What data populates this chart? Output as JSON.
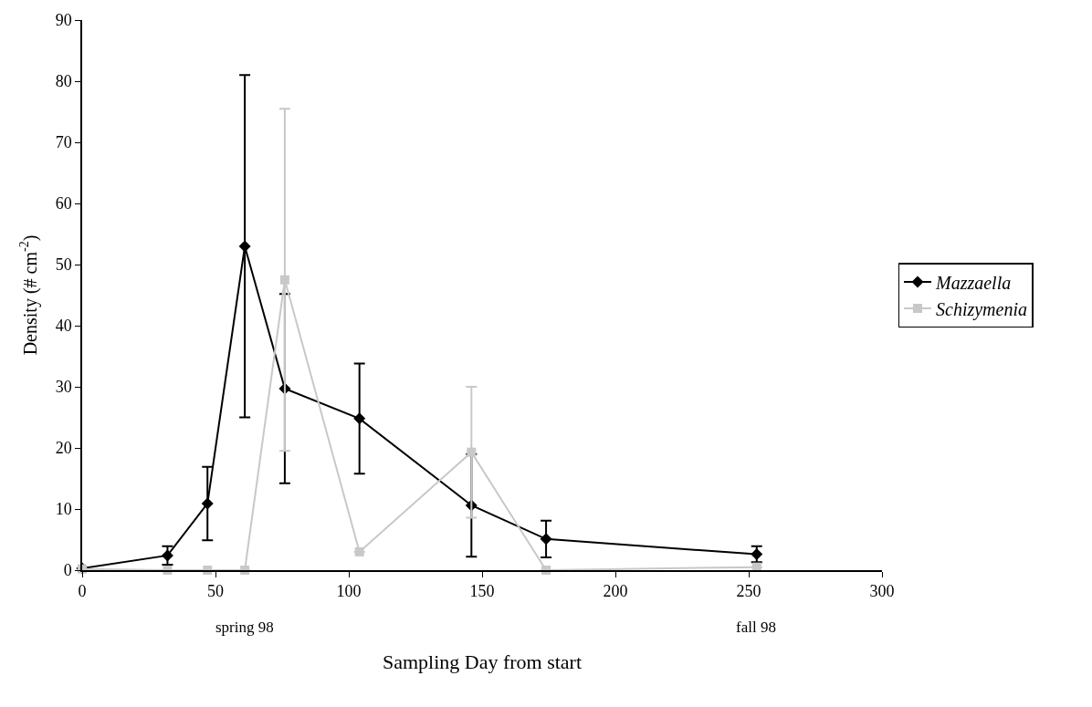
{
  "chart_data": {
    "type": "line",
    "xlabel": "Sampling Day from start",
    "ylabel": "Density (# cm$^{-2}$)",
    "x": [
      0,
      32,
      47,
      61,
      76,
      104,
      146,
      174,
      253
    ],
    "series": [
      {
        "name": "Mazzaella",
        "color": "#000000",
        "marker": "diamond",
        "values": [
          0.3,
          2.4,
          10.9,
          53,
          29.7,
          24.8,
          10.6,
          5.1,
          2.6
        ],
        "errors": [
          null,
          1.5,
          6,
          28,
          15.5,
          9,
          8.4,
          3,
          1.3
        ]
      },
      {
        "name": "Schizymenia",
        "color": "#c8c8c8",
        "marker": "square",
        "values": [
          0.2,
          0,
          0,
          0,
          47.5,
          3,
          19.3,
          0,
          0.5
        ],
        "errors": [
          null,
          null,
          null,
          null,
          28,
          null,
          10.7,
          null,
          null
        ]
      }
    ],
    "xlim": [
      0,
      300
    ],
    "xticks": [
      0,
      50,
      100,
      150,
      200,
      250,
      300
    ],
    "ylim": [
      0,
      90
    ],
    "yticks": [
      0,
      10,
      20,
      30,
      40,
      50,
      60,
      70,
      80,
      90
    ],
    "annotations": [
      "spring 98",
      "fall 98"
    ],
    "legend": "right",
    "line_style": "solid"
  }
}
